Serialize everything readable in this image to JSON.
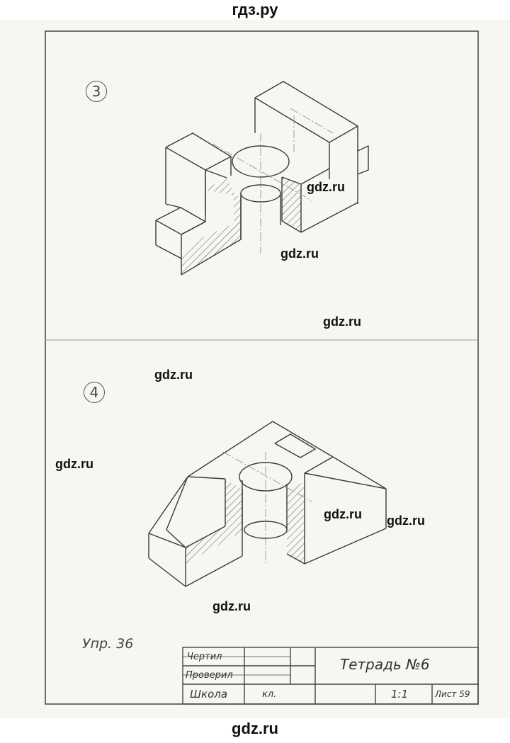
{
  "site_header": "гдз.ру",
  "site_footer": "gdz.ru",
  "figure_3_number": "3",
  "figure_4_number": "4",
  "exercise_label": "Упр. 36",
  "watermarks": [
    "gdz.ru",
    "gdz.ru",
    "gdz.ru",
    "gdz.ru",
    "gdz.ru",
    "gdz.ru",
    "gdz.ru",
    "gdz.ru"
  ],
  "title_block": {
    "drew_label": "Чертил",
    "checked_label": "Проверил",
    "school_label": "Школа",
    "class_label": "кл.",
    "title": "Тетрадь №6",
    "scale": "1:1",
    "sheet": "Лист 59"
  },
  "colors": {
    "ink": "#3a3a3a",
    "paper": "#f6f6f3",
    "watermark": "#111111"
  }
}
